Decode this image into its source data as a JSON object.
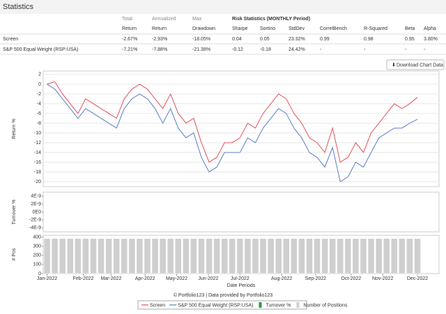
{
  "header": {
    "title": "Statistics"
  },
  "table": {
    "header_top": [
      "Total",
      "Annualized",
      "Max",
      "Risk Statistics (MONTHLY Period)"
    ],
    "header": [
      "Return",
      "Return",
      "Drawdown",
      "Sharpe",
      "Sortino",
      "StdDev",
      "CorrelBench",
      "R-Squared",
      "Beta",
      "Alpha"
    ],
    "rows": [
      [
        "Screen",
        "-2.67%",
        "-2.93%",
        "-18.05%",
        "0.04",
        "0.05",
        "23.32%",
        "0.99",
        "0.98",
        "0.95",
        "3.80%"
      ],
      [
        "S&P 500 Equal Weight (RSP:USA)",
        "-7.21%",
        "-7.88%",
        "-21.38%",
        "-0.12",
        "-0.18",
        "24.42%",
        "-",
        "-",
        "-",
        "-"
      ]
    ]
  },
  "button": "Download Chart Data",
  "chart_data": [
    {
      "type": "line",
      "ylabel": "Return %",
      "xlim": [
        -0.5,
        50.8
      ],
      "ylim": [
        -21,
        2.7
      ],
      "yticks": [
        2,
        0,
        -2,
        -4,
        -6,
        -8,
        -10,
        -12,
        -14,
        -16,
        -18,
        -20
      ],
      "grid": true,
      "series": [
        {
          "name": "Screen",
          "color": "#e0525a",
          "values": [
            0,
            0.5,
            -2,
            -4,
            -6,
            -3,
            -4,
            -5,
            -6,
            -7,
            -3,
            -1,
            0,
            -1,
            -3,
            -5,
            -2,
            -6,
            -8,
            -7,
            -12,
            -16,
            -15,
            -12,
            -12,
            -11,
            -8,
            -9,
            -6,
            -4,
            -2,
            -3,
            -6,
            -8,
            -11,
            -12,
            -14,
            -9,
            -16,
            -15,
            -12,
            -14,
            -10,
            -8,
            -6,
            -4,
            -5,
            -4,
            -2.7
          ]
        },
        {
          "name": "S&P 500 Equal Weight (RSP:USA)",
          "color": "#5a7ec6",
          "values": [
            0,
            -1,
            -3,
            -5,
            -7,
            -5,
            -6,
            -7,
            -8,
            -9,
            -5,
            -3,
            -2,
            -3,
            -5,
            -8,
            -5,
            -9,
            -11,
            -10,
            -15,
            -18,
            -17,
            -14,
            -14,
            -14,
            -11,
            -12,
            -9,
            -7,
            -5,
            -6,
            -9,
            -11,
            -14,
            -15,
            -17,
            -13,
            -20,
            -19,
            -16,
            -17,
            -14,
            -11,
            -10,
            -9,
            -9,
            -8,
            -7.2
          ]
        }
      ]
    },
    {
      "type": "line",
      "ylabel": "Turnover %",
      "xlim": [
        -0.5,
        50.8
      ],
      "ylim": [
        -5e-09,
        5e-09
      ],
      "yticks": [
        {
          "value": 4e-09,
          "label": "4E-9"
        },
        {
          "value": 2e-09,
          "label": "2E-9"
        },
        {
          "value": 0,
          "label": "0E0"
        },
        {
          "value": -2e-09,
          "label": "-2E-9"
        },
        {
          "value": -4e-09,
          "label": "-4E-9"
        }
      ],
      "series": [
        {
          "name": "Turnover %",
          "color": "#2e9a3a",
          "values": []
        }
      ]
    },
    {
      "type": "bar",
      "ylabel": "# Pos",
      "xlabel": "Date Periods",
      "xlim": [
        -0.5,
        50.8
      ],
      "ylim": [
        0,
        420
      ],
      "yticks": [
        400,
        300,
        200,
        100,
        0
      ],
      "xticks": [
        {
          "value": 0,
          "label": "Jan-2022"
        },
        {
          "value": 4.7,
          "label": "Feb-2022"
        },
        {
          "value": 8.3,
          "label": "Mar-2022"
        },
        {
          "value": 12.7,
          "label": "Apr-2022"
        },
        {
          "value": 16.8,
          "label": "May-2022"
        },
        {
          "value": 20.9,
          "label": "Jun-2022"
        },
        {
          "value": 25,
          "label": "Jul-2022"
        },
        {
          "value": 30.4,
          "label": "Aug-2022"
        },
        {
          "value": 34.8,
          "label": "Sep-2022"
        },
        {
          "value": 39.4,
          "label": "Oct-2022"
        },
        {
          "value": 43.5,
          "label": "Nov-2022"
        },
        {
          "value": 48,
          "label": "Dec-2022"
        }
      ],
      "series": [
        {
          "name": "Number of Positions",
          "color": "#cfcfcf",
          "values": [
            385,
            385,
            385,
            385,
            385,
            385,
            385,
            385,
            385,
            385,
            385,
            385,
            385,
            385,
            385,
            385,
            385,
            385,
            385,
            385,
            385,
            385,
            385,
            385,
            385,
            385,
            385,
            385,
            385,
            385,
            385,
            385,
            385,
            385,
            385,
            385,
            385,
            385,
            385,
            385,
            385,
            385,
            385,
            385,
            385,
            385,
            385,
            385,
            385
          ]
        }
      ]
    }
  ],
  "footer": "© Portfolio123 | Data provided by Portfolio123"
}
